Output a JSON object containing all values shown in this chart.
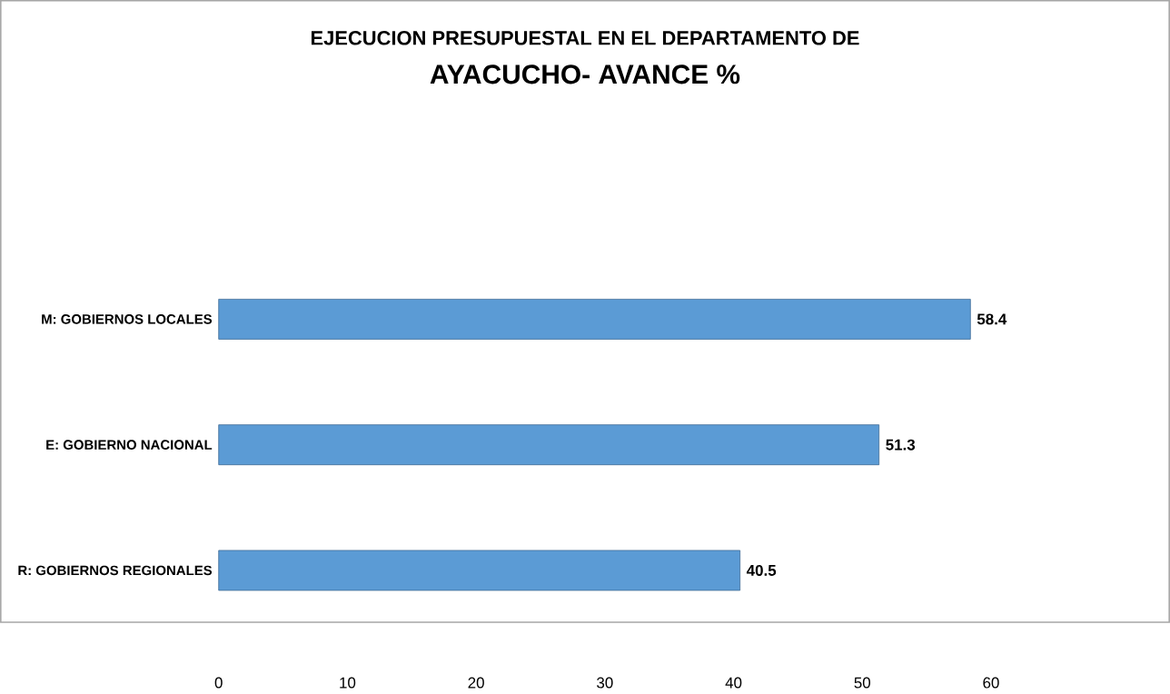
{
  "chart_data": {
    "type": "bar",
    "orientation": "horizontal",
    "title": "EJECUCION PRESUPUESTAL EN EL DEPARTAMENTO DE",
    "subtitle": "AYACUCHO- AVANCE  %",
    "categories": [
      "M: GOBIERNOS LOCALES",
      "E: GOBIERNO NACIONAL",
      "R: GOBIERNOS REGIONALES"
    ],
    "values": [
      58.4,
      51.3,
      40.5
    ],
    "color": "#5b9bd5",
    "xlim": [
      0,
      60
    ],
    "xticks": [
      0,
      10,
      20,
      30,
      40,
      50,
      60
    ],
    "data_labels": true
  }
}
